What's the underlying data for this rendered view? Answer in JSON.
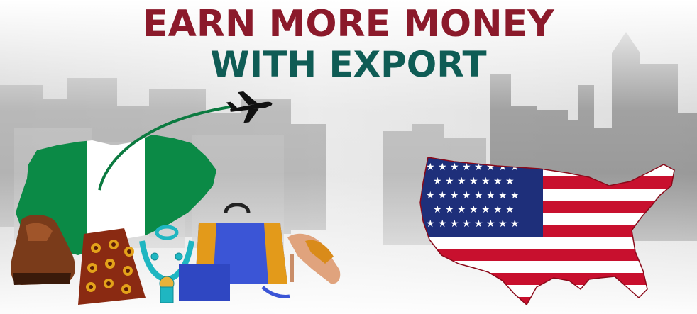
{
  "headline": {
    "line1": "EARN MORE MONEY",
    "line2": "WITH EXPORT"
  },
  "colors": {
    "headline_line1": "#8b1a2b",
    "headline_line2": "#0f5c55",
    "nigeria_green": "#0b8a46",
    "usa_red": "#c8102e",
    "usa_blue": "#1e2f7a"
  },
  "icons": [
    "airplane-icon",
    "nigeria-map-flag",
    "usa-map-flag",
    "shoe-icon",
    "handbag-icon",
    "necklace-icon",
    "high-heel-icon"
  ]
}
